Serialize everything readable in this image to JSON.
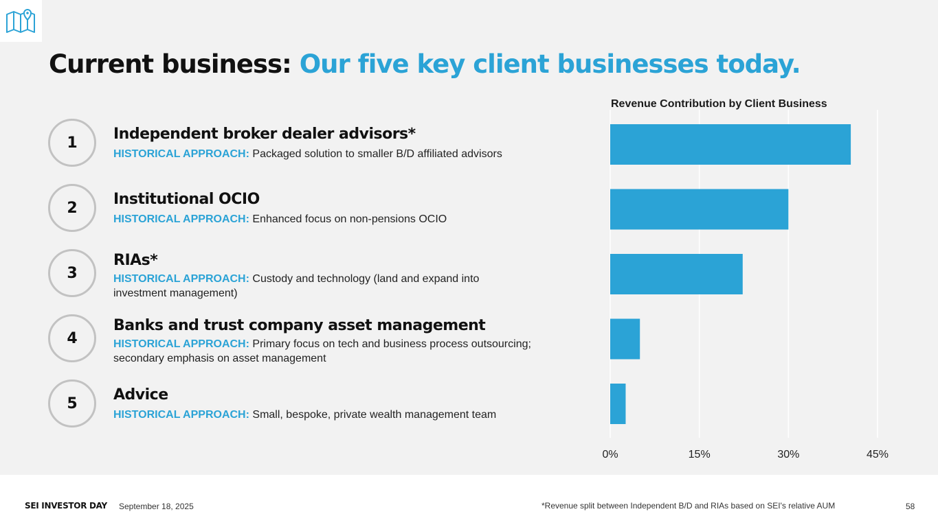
{
  "title": {
    "prefix": "Current business:",
    "accent": "Our five key client businesses today."
  },
  "colors": {
    "accent": "#2ba3d6",
    "bar": "#2ba3d6",
    "circle_border": "#c2c2c2"
  },
  "icons": {
    "corner": "map-pin-icon"
  },
  "items": [
    {
      "number": "1",
      "heading": "Independent broker dealer advisors*",
      "label": "HISTORICAL APPROACH:",
      "text": "Packaged solution to smaller B/D affiliated advisors"
    },
    {
      "number": "2",
      "heading": "Institutional OCIO",
      "label": "HISTORICAL APPROACH:",
      "text": "Enhanced focus on non-pensions OCIO"
    },
    {
      "number": "3",
      "heading": "RIAs*",
      "label": "HISTORICAL APPROACH:",
      "text": "Custody and technology (land and expand into investment management)"
    },
    {
      "number": "4",
      "heading": "Banks and trust company asset management",
      "label": "HISTORICAL APPROACH:",
      "text": "Primary focus on tech and business process outsourcing; secondary emphasis on asset management"
    },
    {
      "number": "5",
      "heading": "Advice",
      "label": "HISTORICAL APPROACH:",
      "text": "Small, bespoke, private wealth management team"
    }
  ],
  "chart_data": {
    "type": "bar",
    "orientation": "horizontal",
    "title": "Revenue Contribution by Client Business",
    "categories": [
      "Independent broker dealer advisors*",
      "Institutional OCIO",
      "RIAs*",
      "Banks and trust company asset management",
      "Advice"
    ],
    "values": [
      40.5,
      30,
      22.3,
      5,
      2.6
    ],
    "xlim": [
      0,
      45
    ],
    "xticks": [
      0,
      15,
      30,
      45
    ],
    "xtick_labels": [
      "0%",
      "15%",
      "30%",
      "45%"
    ],
    "grid": true,
    "legend": "none"
  },
  "footer": {
    "brand": "SEI INVESTOR DAY",
    "date": "September 18, 2025",
    "footnote": "*Revenue split between Independent B/D and RIAs based on SEI's relative AUM",
    "page": "58"
  }
}
